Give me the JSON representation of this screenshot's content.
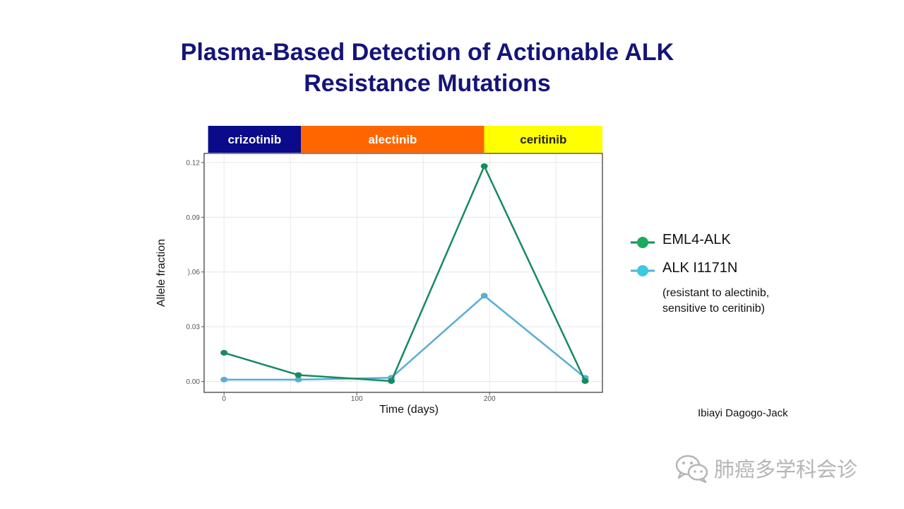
{
  "title": {
    "line1": "Plasma-Based Detection of Actionable ALK",
    "line2": "Resistance Mutations"
  },
  "chart_data": {
    "type": "line",
    "xlabel": "Time (days)",
    "ylabel": "Allele fraction",
    "xlim": [
      -15,
      285
    ],
    "ylim": [
      -0.006,
      0.125
    ],
    "xticks": [
      0,
      100,
      200
    ],
    "x_minor_gridlines": [
      50,
      150,
      250
    ],
    "yticks": [
      0.0,
      0.03,
      0.06,
      0.09,
      0.12
    ],
    "ytick_labels": [
      "0.00",
      "0.03",
      ").06",
      "0.09",
      "0.12"
    ],
    "grid": true,
    "legend_position": "right",
    "treatment_bands": [
      {
        "label": "crizotinib",
        "start": -12,
        "end": 58,
        "color": "#0a0a8a",
        "text_color": "#ffffff"
      },
      {
        "label": "alectinib",
        "start": 58,
        "end": 196,
        "color": "#ff6600",
        "text_color": "#ffffff"
      },
      {
        "label": "ceritinib",
        "start": 196,
        "end": 286,
        "color": "#ffff00",
        "text_color": "#222222"
      }
    ],
    "series": [
      {
        "name": "EML4-ALK",
        "color": "#178a5e",
        "legend_color": "#1aaa5a",
        "x": [
          0,
          56,
          126,
          196,
          272
        ],
        "y": [
          0.0157,
          0.0035,
          0.0002,
          0.118,
          0.0002
        ]
      },
      {
        "name": "ALK I1171N",
        "color": "#5aaed2",
        "legend_color": "#3cc8e0",
        "x": [
          0,
          56,
          126,
          196,
          272
        ],
        "y": [
          0.001,
          0.001,
          0.002,
          0.047,
          0.002
        ]
      }
    ]
  },
  "legend_note": {
    "line1": "(resistant to alectinib,",
    "line2": "sensitive to ceritinib)"
  },
  "credit": "Ibiayi Dagogo-Jack",
  "watermark": {
    "text": "肺癌多学科会诊",
    "icon": "wechat-icon"
  }
}
